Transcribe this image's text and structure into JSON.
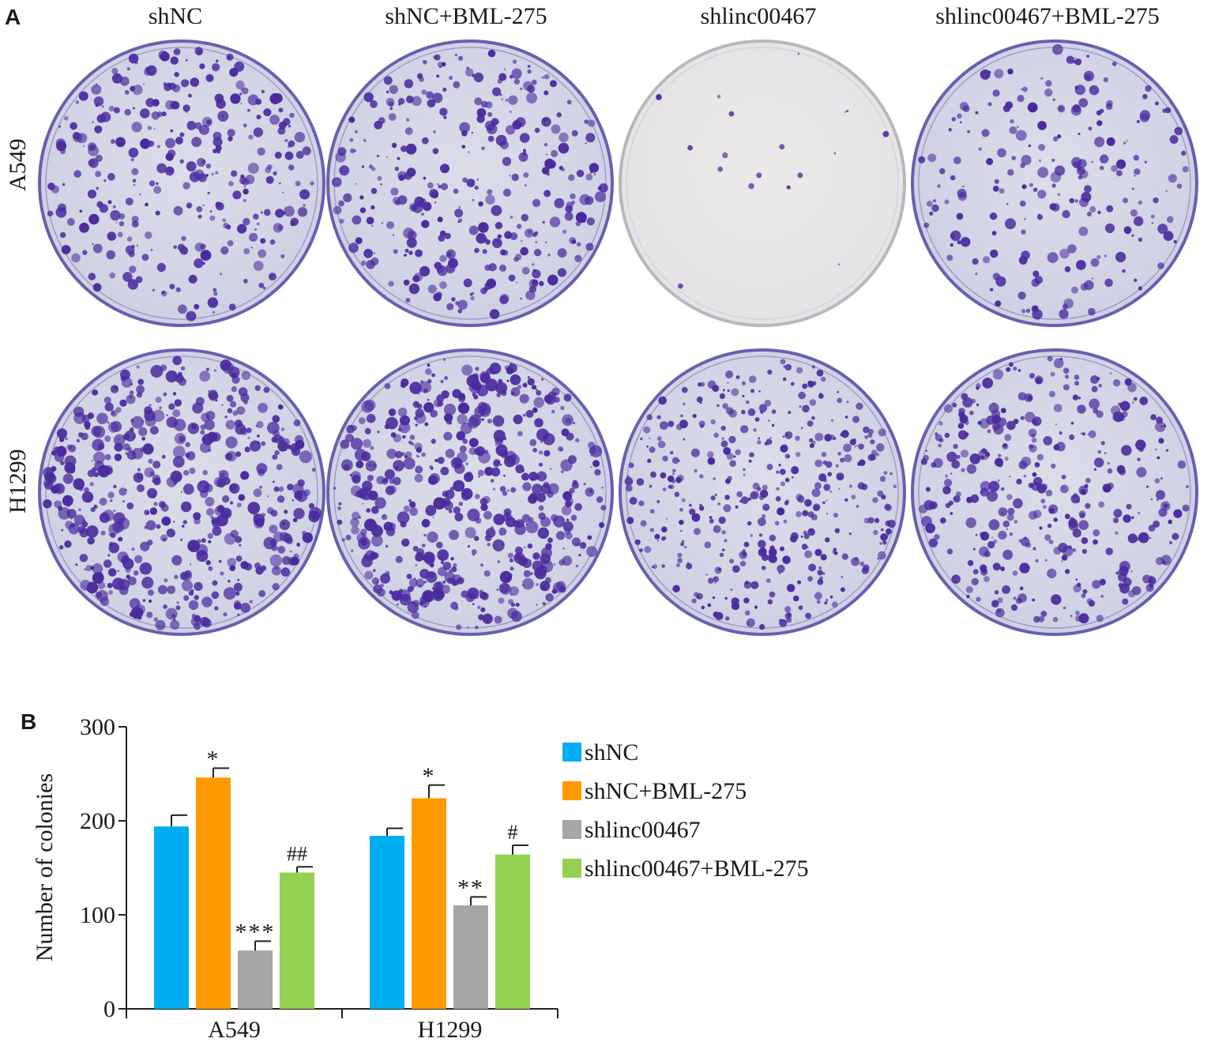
{
  "panel_a": {
    "label": "A",
    "columns": [
      "shNC",
      "shNC+BML-275",
      "shlinc00467",
      "shlinc00467+BML-275"
    ],
    "rows": [
      "A549",
      "H1299"
    ],
    "plate_colors": {
      "stain": "#4b2a9e",
      "plate_bg": "#cdd0e3",
      "plate_bg_light": "#e4e2e6"
    }
  },
  "panel_b": {
    "label": "B"
  },
  "chart_data": {
    "type": "bar",
    "title": "",
    "xlabel": "",
    "ylabel": "Number of colonies",
    "ylim": [
      0,
      300
    ],
    "yticks": [
      0,
      100,
      200,
      300
    ],
    "categories": [
      "A549",
      "H1299"
    ],
    "series": [
      {
        "name": "shNC",
        "color": "#00aeef",
        "values": [
          194,
          184
        ],
        "errors": [
          12,
          8
        ],
        "annotations": [
          "",
          ""
        ]
      },
      {
        "name": "shNC+BML-275",
        "color": "#ff9900",
        "values": [
          246,
          224
        ],
        "errors": [
          10,
          14
        ],
        "annotations": [
          "*",
          "*"
        ]
      },
      {
        "name": "shlinc00467",
        "color": "#a6a6a6",
        "values": [
          62,
          110
        ],
        "errors": [
          10,
          9
        ],
        "annotations": [
          "***",
          "**"
        ]
      },
      {
        "name": "shlinc00467+BML-275",
        "color": "#92d050",
        "values": [
          145,
          164
        ],
        "errors": [
          6,
          10
        ],
        "annotations": [
          "##",
          "#"
        ]
      }
    ],
    "legend_position": "right"
  }
}
